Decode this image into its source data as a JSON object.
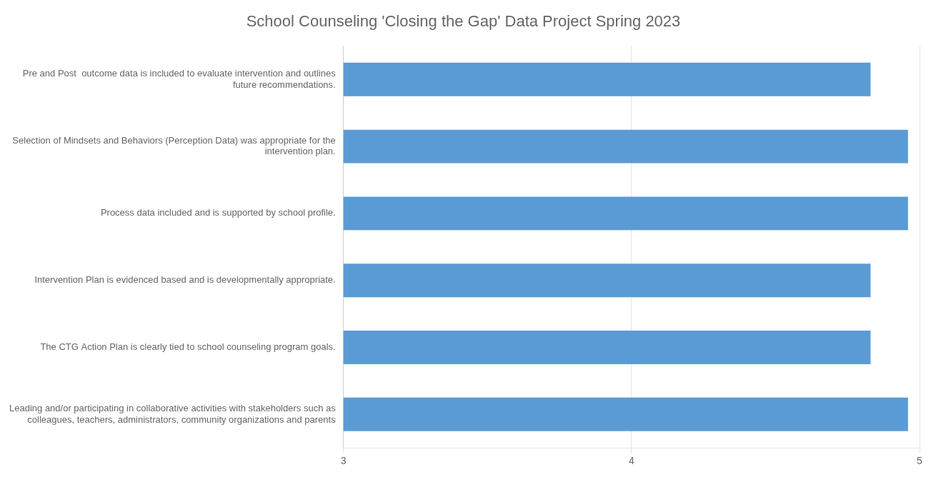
{
  "chart_data": {
    "type": "bar",
    "orientation": "horizontal",
    "title": "School Counseling 'Closing the Gap' Data Project Spring 2023",
    "categories": [
      "Leading and/or participating in collaborative activities with stakeholders such as\ncolleagues, teachers, administrators, community organizations and parents",
      "The CTG Action Plan is clearly tied to school counseling program goals.",
      "Intervention Plan is evidenced based and is developmentally appropriate.",
      "Process data included and is supported by school profile.",
      "Selection of Mindsets and Behaviors (Perception Data) was appropriate for the\nintervention plan.",
      "Pre and Post  outcome data is included to evaluate intervention and outlines\nfuture recommendations."
    ],
    "values": [
      4.96,
      4.83,
      4.83,
      4.96,
      4.96,
      4.83
    ],
    "color": "#5B9BD5",
    "xlim": [
      3,
      5
    ],
    "xticks": [
      3,
      4,
      5
    ],
    "grid": true
  }
}
